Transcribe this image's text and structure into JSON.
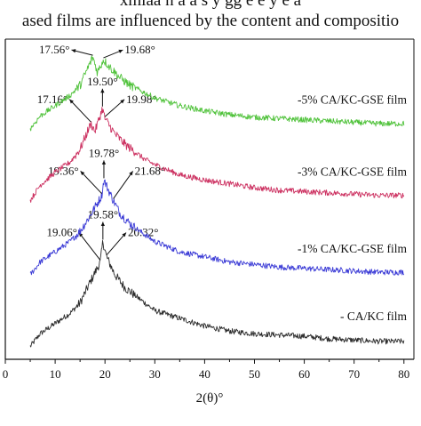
{
  "caption_lines": [
    "xmlaa n a  a s y gg  e   e  y  e   a",
    "ased films are influenced by the content and compositio"
  ],
  "chart_data": {
    "type": "line",
    "title": "",
    "xlabel": "2(θ)°",
    "ylabel": "",
    "xlim": [
      0,
      82
    ],
    "x_ticks": [
      0,
      10,
      20,
      30,
      40,
      50,
      60,
      70,
      80
    ],
    "x_tick_labels": [
      "0",
      "10",
      "20",
      "30",
      "40",
      "50",
      "60",
      "70",
      "80"
    ],
    "series": [
      {
        "name": "- CA/KC film",
        "color": "#2b2b2b",
        "base": 0.05,
        "points": [
          [
            5,
            0.05
          ],
          [
            7,
            0.1
          ],
          [
            10,
            0.14
          ],
          [
            13,
            0.18
          ],
          [
            15,
            0.22
          ],
          [
            17,
            0.3
          ],
          [
            19.06,
            0.38
          ],
          [
            19.58,
            0.46
          ],
          [
            20.32,
            0.4
          ],
          [
            22,
            0.33
          ],
          [
            24,
            0.28
          ],
          [
            26,
            0.25
          ],
          [
            28,
            0.22
          ],
          [
            30,
            0.19
          ],
          [
            35,
            0.16
          ],
          [
            40,
            0.13
          ],
          [
            45,
            0.11
          ],
          [
            50,
            0.1
          ],
          [
            55,
            0.095
          ],
          [
            60,
            0.09
          ],
          [
            65,
            0.08
          ],
          [
            70,
            0.075
          ],
          [
            75,
            0.07
          ],
          [
            80,
            0.07
          ]
        ],
        "peaks": [
          {
            "label": "19.06°",
            "x": 19.06
          },
          {
            "label": "19.58°",
            "x": 19.58
          },
          {
            "label": "20.32°",
            "x": 20.32
          }
        ]
      },
      {
        "name": "-1% CA/KC-GSE film",
        "color": "#3b3bd6",
        "base": 0.33,
        "points": [
          [
            5,
            0.33
          ],
          [
            7,
            0.38
          ],
          [
            10,
            0.42
          ],
          [
            13,
            0.46
          ],
          [
            15,
            0.5
          ],
          [
            17,
            0.56
          ],
          [
            19.36,
            0.64
          ],
          [
            19.78,
            0.7
          ],
          [
            21.68,
            0.62
          ],
          [
            23,
            0.57
          ],
          [
            25,
            0.53
          ],
          [
            27,
            0.5
          ],
          [
            30,
            0.46
          ],
          [
            35,
            0.42
          ],
          [
            40,
            0.4
          ],
          [
            45,
            0.38
          ],
          [
            50,
            0.37
          ],
          [
            55,
            0.36
          ],
          [
            60,
            0.355
          ],
          [
            65,
            0.35
          ],
          [
            70,
            0.345
          ],
          [
            75,
            0.34
          ],
          [
            80,
            0.34
          ]
        ],
        "peaks": [
          {
            "label": "19.36°",
            "x": 19.36
          },
          {
            "label": "19.78°",
            "x": 19.78
          },
          {
            "label": "21.68°",
            "x": 21.68
          }
        ]
      },
      {
        "name": "-3% CA/KC-GSE film",
        "color": "#cc3060",
        "base": 0.62,
        "points": [
          [
            5,
            0.62
          ],
          [
            7,
            0.68
          ],
          [
            10,
            0.73
          ],
          [
            13,
            0.77
          ],
          [
            15,
            0.82
          ],
          [
            17.16,
            0.92
          ],
          [
            18,
            0.89
          ],
          [
            19.5,
            0.98
          ],
          [
            19.98,
            0.94
          ],
          [
            22,
            0.88
          ],
          [
            24,
            0.84
          ],
          [
            26,
            0.81
          ],
          [
            28,
            0.78
          ],
          [
            30,
            0.76
          ],
          [
            35,
            0.72
          ],
          [
            40,
            0.7
          ],
          [
            45,
            0.685
          ],
          [
            50,
            0.67
          ],
          [
            55,
            0.66
          ],
          [
            60,
            0.655
          ],
          [
            65,
            0.65
          ],
          [
            70,
            0.645
          ],
          [
            75,
            0.64
          ],
          [
            80,
            0.64
          ]
        ],
        "peaks": [
          {
            "label": "17.16°",
            "x": 17.16
          },
          {
            "label": "19.50°",
            "x": 19.5
          },
          {
            "label": "19.98°",
            "x": 19.98
          }
        ]
      },
      {
        "name": "-5% CA/KC-GSE film",
        "color": "#4fc23a",
        "base": 0.9,
        "points": [
          [
            5,
            0.9
          ],
          [
            7,
            0.95
          ],
          [
            10,
            0.99
          ],
          [
            13,
            1.03
          ],
          [
            15,
            1.07
          ],
          [
            17.56,
            1.18
          ],
          [
            18.5,
            1.12
          ],
          [
            19.68,
            1.17
          ],
          [
            21,
            1.14
          ],
          [
            23,
            1.1
          ],
          [
            25,
            1.07
          ],
          [
            27,
            1.05
          ],
          [
            30,
            1.02
          ],
          [
            35,
            0.99
          ],
          [
            40,
            0.97
          ],
          [
            45,
            0.955
          ],
          [
            50,
            0.945
          ],
          [
            55,
            0.94
          ],
          [
            60,
            0.935
          ],
          [
            65,
            0.93
          ],
          [
            70,
            0.925
          ],
          [
            75,
            0.92
          ],
          [
            80,
            0.92
          ]
        ],
        "peaks": [
          {
            "label": "17.56°",
            "x": 17.56
          },
          {
            "label": "19.68°",
            "x": 19.68
          }
        ]
      }
    ],
    "grid": false,
    "legend": "inline labels at right"
  }
}
